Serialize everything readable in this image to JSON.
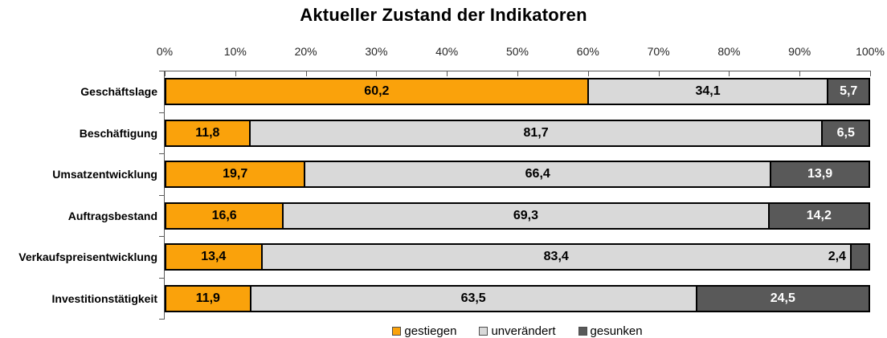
{
  "title": "Aktueller Zustand der Indikatoren",
  "axis": {
    "tick_labels": [
      "0%",
      "10%",
      "20%",
      "30%",
      "40%",
      "50%",
      "60%",
      "70%",
      "80%",
      "90%",
      "100%"
    ]
  },
  "legend": {
    "items": [
      {
        "label": "gestiegen",
        "color": "#FAA20B"
      },
      {
        "label": "unverändert",
        "color": "#D9D9D9"
      },
      {
        "label": "gesunken",
        "color": "#595959"
      }
    ]
  },
  "chart_data": {
    "type": "bar",
    "orientation": "horizontal",
    "stacked": true,
    "title": "Aktueller Zustand der Indikatoren",
    "categories": [
      "Geschäftslage",
      "Beschäftigung",
      "Umsatzentwicklung",
      "Auftragsbestand",
      "Verkaufspreisentwicklung",
      "Investitionstätigkeit"
    ],
    "series": [
      {
        "name": "gestiegen",
        "color": "#FAA20B",
        "label_color": "#000000",
        "values": [
          60.2,
          11.8,
          19.7,
          16.6,
          13.4,
          11.9
        ]
      },
      {
        "name": "unverändert",
        "color": "#D9D9D9",
        "label_color": "#000000",
        "values": [
          34.1,
          81.7,
          66.4,
          69.3,
          83.4,
          63.5
        ]
      },
      {
        "name": "gesunken",
        "color": "#595959",
        "label_color": "#ffffff",
        "values": [
          5.7,
          6.5,
          13.9,
          14.2,
          2.4,
          24.5
        ]
      }
    ],
    "xlim": [
      0,
      100
    ],
    "xlabel": "",
    "ylabel": "",
    "grid": false,
    "value_axis_position": "top",
    "legend_position": "bottom",
    "decimal_format": "comma"
  }
}
